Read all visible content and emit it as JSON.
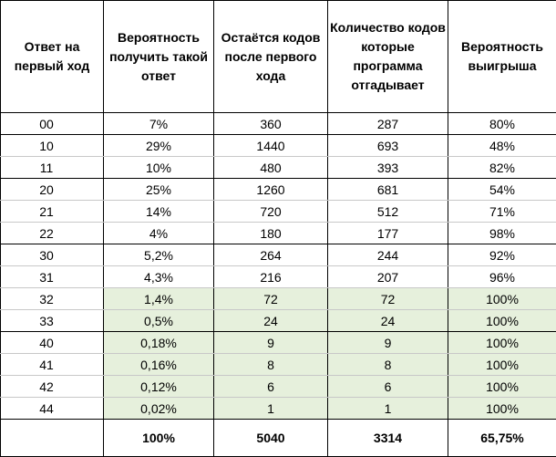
{
  "columns": [
    "Ответ на первый ход",
    "Вероятность получить такой ответ",
    "Остаётся кодов после первого хода",
    "Количество кодов которые программа отгадывает",
    "Вероятность выигрыша"
  ],
  "highlight_color": "#e6f0dc",
  "rows": [
    {
      "cells": [
        "00",
        "7%",
        "360",
        "287",
        "80%"
      ],
      "group_start": true,
      "group_end": true,
      "highlight": false
    },
    {
      "cells": [
        "10",
        "29%",
        "1440",
        "693",
        "48%"
      ],
      "group_start": true,
      "group_end": false,
      "highlight": false
    },
    {
      "cells": [
        "11",
        "10%",
        "480",
        "393",
        "82%"
      ],
      "group_start": false,
      "group_end": true,
      "highlight": false
    },
    {
      "cells": [
        "20",
        "25%",
        "1260",
        "681",
        "54%"
      ],
      "group_start": true,
      "group_end": false,
      "highlight": false
    },
    {
      "cells": [
        "21",
        "14%",
        "720",
        "512",
        "71%"
      ],
      "group_start": false,
      "group_end": false,
      "highlight": false
    },
    {
      "cells": [
        "22",
        "4%",
        "180",
        "177",
        "98%"
      ],
      "group_start": false,
      "group_end": true,
      "highlight": false
    },
    {
      "cells": [
        "30",
        "5,2%",
        "264",
        "244",
        "92%"
      ],
      "group_start": true,
      "group_end": false,
      "highlight": false
    },
    {
      "cells": [
        "31",
        "4,3%",
        "216",
        "207",
        "96%"
      ],
      "group_start": false,
      "group_end": false,
      "highlight": false
    },
    {
      "cells": [
        "32",
        "1,4%",
        "72",
        "72",
        "100%"
      ],
      "group_start": false,
      "group_end": false,
      "highlight": true
    },
    {
      "cells": [
        "33",
        "0,5%",
        "24",
        "24",
        "100%"
      ],
      "group_start": false,
      "group_end": true,
      "highlight": true
    },
    {
      "cells": [
        "40",
        "0,18%",
        "9",
        "9",
        "100%"
      ],
      "group_start": true,
      "group_end": false,
      "highlight": true
    },
    {
      "cells": [
        "41",
        "0,16%",
        "8",
        "8",
        "100%"
      ],
      "group_start": false,
      "group_end": false,
      "highlight": true
    },
    {
      "cells": [
        "42",
        "0,12%",
        "6",
        "6",
        "100%"
      ],
      "group_start": false,
      "group_end": false,
      "highlight": true
    },
    {
      "cells": [
        "44",
        "0,02%",
        "1",
        "1",
        "100%"
      ],
      "group_start": false,
      "group_end": true,
      "highlight": true
    }
  ],
  "totals": [
    "",
    "100%",
    "5040",
    "3314",
    "65,75%"
  ]
}
